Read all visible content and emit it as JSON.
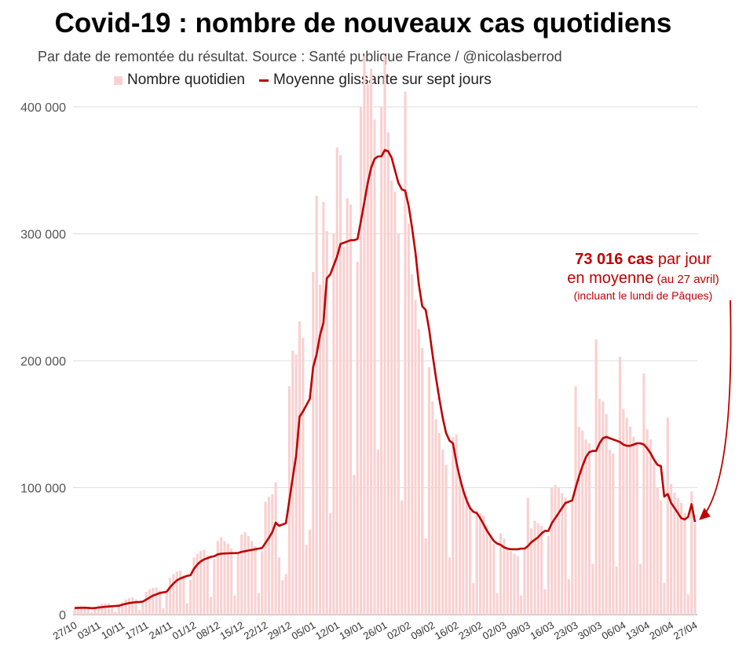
{
  "title": "Covid-19 : nombre de nouveaux cas quotidiens",
  "subtitle": "Par date de remontée du résultat. Source : Santé publique France / @nicolasberrod",
  "legend": {
    "bars": "Nombre quotidien",
    "line": "Moyenne glissante sur sept jours"
  },
  "colors": {
    "bar": "#f9d0d0",
    "line": "#c00000",
    "grid": "#dddddd",
    "annotation": "#c00000"
  },
  "annotation": {
    "value": "73 016 cas",
    "per_day": " par jour",
    "line2": "en moyenne",
    "date_note": " (au 27 avril)",
    "note": "(incluant le lundi de Pâques)"
  },
  "chart_data": {
    "type": "bar+line",
    "title": "Covid-19 : nombre de nouveaux cas quotidiens",
    "ylim": [
      0,
      400000
    ],
    "yticks": [
      0,
      100000,
      200000,
      300000,
      400000
    ],
    "ytick_labels": [
      "0",
      "100 000",
      "200 000",
      "300 000",
      "400 000"
    ],
    "xtick_labels": [
      "27/10",
      "03/11",
      "10/11",
      "17/11",
      "24/11",
      "01/12",
      "08/12",
      "15/12",
      "22/12",
      "29/12",
      "05/01",
      "12/01",
      "19/01",
      "26/01",
      "02/02",
      "09/02",
      "16/02",
      "23/02",
      "02/03",
      "09/03",
      "16/03",
      "23/03",
      "30/03",
      "06/04",
      "13/04",
      "20/04",
      "27/04"
    ],
    "daily_cases": [
      5000,
      6500,
      7000,
      6800,
      6000,
      1800,
      5500,
      7500,
      8500,
      9000,
      8800,
      7500,
      2200,
      7000,
      10000,
      12000,
      13000,
      13500,
      12000,
      3500,
      10500,
      18000,
      20000,
      21000,
      21500,
      19000,
      5000,
      17000,
      29000,
      32000,
      34000,
      34500,
      31000,
      9000,
      27500,
      45000,
      48000,
      50000,
      51000,
      47000,
      14000,
      44000,
      58000,
      61000,
      58000,
      56000,
      52000,
      15000,
      48000,
      63000,
      65000,
      62000,
      58000,
      54000,
      17000,
      50000,
      89000,
      93000,
      95000,
      104000,
      45000,
      27000,
      32000,
      180000,
      208000,
      205000,
      231000,
      218000,
      55000,
      67000,
      270000,
      330000,
      260000,
      325000,
      302000,
      80000,
      300000,
      368000,
      362000,
      290000,
      328000,
      323000,
      110000,
      278000,
      400000,
      440000,
      418000,
      430000,
      390000,
      130000,
      400000,
      440000,
      380000,
      342000,
      333000,
      300000,
      90000,
      412000,
      308000,
      268000,
      248000,
      225000,
      210000,
      60000,
      195000,
      168000,
      154000,
      143000,
      130000,
      118000,
      45000,
      140000,
      142000,
      110000,
      100000,
      93000,
      86000,
      25000,
      82000,
      80000,
      78000,
      70000,
      62000,
      56000,
      17000,
      64000,
      60000,
      52000,
      50000,
      48000,
      46000,
      15000,
      52000,
      92000,
      68000,
      74000,
      72000,
      70000,
      20000,
      62000,
      100000,
      102000,
      100000,
      96000,
      92000,
      28000,
      91000,
      180000,
      148000,
      145000,
      138000,
      135000,
      40000,
      217000,
      170000,
      168000,
      158000,
      130000,
      127000,
      38000,
      203000,
      162000,
      155000,
      148000,
      140000,
      135000,
      40000,
      190000,
      146000,
      138000,
      120000,
      100000,
      90000,
      25000,
      155000,
      103000,
      96000,
      92000,
      88000,
      80000,
      16000,
      97000,
      72000
    ],
    "rolling_avg_7d": [
      5200,
      5300,
      5400,
      5400,
      5300,
      5100,
      5200,
      5600,
      5900,
      6200,
      6400,
      6600,
      6800,
      7000,
      7800,
      8500,
      9100,
      9500,
      9800,
      10000,
      10300,
      11800,
      13500,
      15000,
      16000,
      17000,
      17500,
      18000,
      21500,
      24500,
      27000,
      28500,
      29500,
      30500,
      31000,
      36000,
      39500,
      42000,
      43500,
      44500,
      45500,
      46000,
      47500,
      48000,
      48200,
      48300,
      48400,
      48500,
      48600,
      49500,
      50000,
      50500,
      51000,
      51500,
      52000,
      52500,
      56500,
      60500,
      65000,
      72500,
      70000,
      71000,
      72000,
      90000,
      108000,
      125000,
      156000,
      160000,
      165000,
      170000,
      195000,
      205000,
      220000,
      230000,
      265000,
      268000,
      275000,
      282000,
      292000,
      293000,
      294000,
      295000,
      295000,
      296000,
      310000,
      325000,
      340000,
      352000,
      359000,
      361000,
      361000,
      366000,
      365000,
      360000,
      350000,
      340000,
      335000,
      334000,
      322000,
      305000,
      285000,
      260000,
      243000,
      240000,
      225000,
      205000,
      187000,
      170000,
      155000,
      143000,
      137000,
      135000,
      120000,
      108000,
      98000,
      90000,
      84000,
      81000,
      80000,
      76000,
      71000,
      66000,
      62000,
      58000,
      56000,
      55000,
      53000,
      52000,
      51500,
      51500,
      51500,
      52000,
      52000,
      54000,
      57000,
      59000,
      61000,
      64000,
      66000,
      66000,
      72000,
      76000,
      80000,
      84000,
      88000,
      89000,
      90000,
      100000,
      109000,
      117000,
      124000,
      128000,
      129000,
      129000,
      135000,
      139000,
      140000,
      139000,
      138000,
      137000,
      136000,
      134000,
      133000,
      133000,
      134000,
      135000,
      135000,
      134000,
      131000,
      127000,
      122000,
      118000,
      117000,
      93000,
      95000,
      88000,
      84000,
      80000,
      76000,
      75000,
      77000,
      87000,
      73016
    ]
  }
}
